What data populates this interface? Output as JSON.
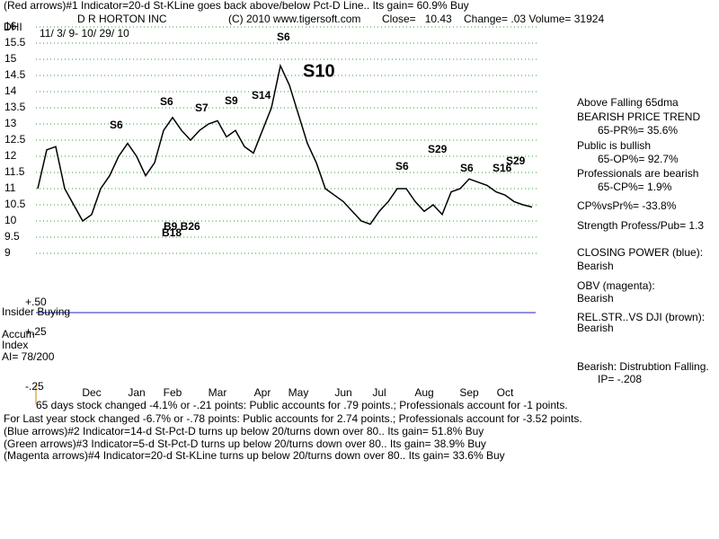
{
  "chart_data": {
    "type": "line",
    "header": "(Red arrows)#1 Indicator=20-d St-KLine goes back above/below Pct-D Line.. Its gain= 60.9% Buy",
    "symbol": "DHI",
    "company": "D R HORTON INC",
    "copyright": "(C) 2010 www.tigersoft.com",
    "close": "Close=   10.43",
    "change": "Change= .03 Volume= 31924",
    "date_range": "11/ 3/ 9- 10/ 29/ 10",
    "ylim": [
      9,
      16
    ],
    "yticks": [
      16,
      15.5,
      15,
      14.5,
      14,
      13.5,
      13,
      12.5,
      12,
      11.5,
      11,
      10.5,
      10,
      9.5,
      9
    ],
    "grid": true,
    "categories": [
      null,
      null,
      null,
      null,
      null,
      null,
      "Dec",
      null,
      null,
      null,
      null,
      "Jan",
      null,
      null,
      null,
      "Feb",
      null,
      null,
      null,
      null,
      "Mar",
      null,
      null,
      null,
      null,
      "Apr",
      null,
      null,
      null,
      "May",
      null,
      null,
      null,
      null,
      "Jun",
      null,
      null,
      null,
      "Jul",
      null,
      null,
      null,
      null,
      "Aug",
      null,
      null,
      null,
      null,
      "Sep",
      null,
      null,
      null,
      "Oct",
      null,
      null,
      null
    ],
    "series": [
      {
        "name": "DHI",
        "color": "#000000",
        "values": [
          11.0,
          12.2,
          12.3,
          11.0,
          10.5,
          10.0,
          10.2,
          11.0,
          11.4,
          12.0,
          12.4,
          12.0,
          11.4,
          11.8,
          12.8,
          13.2,
          12.8,
          12.5,
          12.8,
          13.0,
          13.1,
          12.6,
          12.8,
          12.3,
          12.1,
          12.8,
          13.5,
          14.8,
          14.2,
          13.3,
          12.4,
          11.8,
          11.0,
          10.8,
          10.6,
          10.3,
          10.0,
          9.9,
          10.3,
          10.6,
          11.0,
          11.0,
          10.6,
          10.3,
          10.5,
          10.2,
          10.9,
          11.0,
          11.3,
          11.2,
          11.1,
          10.9,
          10.8,
          10.6,
          10.5,
          10.43
        ]
      }
    ],
    "signals": [
      "S6",
      "S6",
      "S7",
      "S9",
      "S14",
      "S6",
      "S10",
      "S6",
      "S29",
      "S6",
      "S16",
      "S29",
      "B9 B26",
      "B18"
    ],
    "indicator_labels": [
      "+.50",
      "Insider Buying",
      "+.25",
      "Accum",
      "Index",
      "AI= 78/200",
      "-.25"
    ],
    "right_panel": [
      "Above Falling 65dma",
      "BEARISH PRICE TREND",
      "65-PR%= 35.6%",
      "Public is bullish",
      "65-OP%= 92.7%",
      "Professionals are bearish",
      "65-CP%= 1.9%",
      "CP%vsPr%= -33.8%",
      "Strength Profess/Pub= 1.3",
      "CLOSING POWER (blue):",
      "Bearish",
      "OBV (magenta):",
      "Bearish",
      "REL.STR..VS DJI (brown):",
      "Bearish",
      "Bearish: Distrubtion Falling.",
      "IP= -.208"
    ],
    "footer": [
      "65 days stock changed -4.1% or -.21 points:  Public accounts for  .79 points.;  Professionals account for -1 points.",
      "For Last year stock changed -6.7% or -.78 points:  Public accounts for  2.74 points.;  Professionals account for -3.52 points.",
      "(Blue arrows)#2 Indicator=14-d St-Pct-D turns up below 20/turns down over 80.. Its gain= 51.8% Buy",
      "(Green arrows)#3 Indicator=5-d St-Pct-D turns up below 20/turns down over 80.. Its gain= 38.9% Buy",
      "(Magenta arrows)#4 Indicator=20-d St-KLine turns up below 20/turns down over 80.. Its gain= 33.6% Buy"
    ]
  }
}
